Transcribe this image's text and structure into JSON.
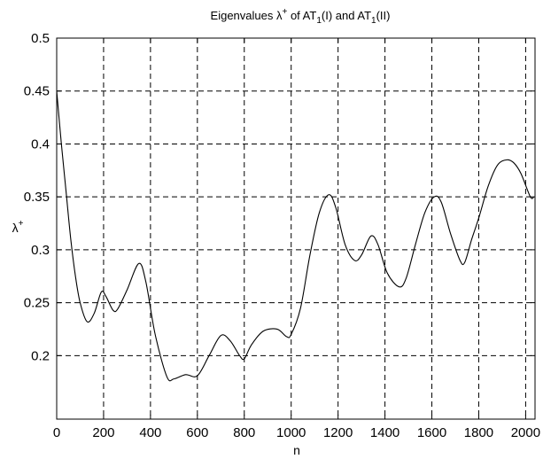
{
  "chart_data": {
    "type": "line",
    "title": {
      "text": "Eigenvalues λ",
      "sup": "+",
      "mid1": " of AT",
      "sub1": "1",
      "mid2": "(I) and AT",
      "sub2": "1",
      "end": "(II)"
    },
    "xlabel": "n",
    "ylabel": {
      "text": "λ",
      "sup": "+"
    },
    "xlim": [
      0,
      2040
    ],
    "ylim": [
      0.14,
      0.5
    ],
    "xticks": [
      0,
      200,
      400,
      600,
      800,
      1000,
      1200,
      1400,
      1600,
      1800,
      2000
    ],
    "xtick_labels": [
      "0",
      "200",
      "400",
      "600",
      "800",
      "1000",
      "1200",
      "1400",
      "1600",
      "1800",
      "2000"
    ],
    "yticks": [
      0.2,
      0.25,
      0.3,
      0.35,
      0.4,
      0.45,
      0.5
    ],
    "ytick_labels": [
      "0.2",
      "0.25",
      "0.3",
      "0.35",
      "0.4",
      "0.45",
      "0.5"
    ],
    "grid": true,
    "grid_style": "dashed",
    "line_color": "#000000",
    "series": [
      {
        "x": [
          0,
          20,
          40,
          60,
          80,
          100,
          130,
          160,
          190,
          210,
          240,
          260,
          300,
          350,
          380,
          420,
          470,
          500,
          550,
          600,
          650,
          700,
          740,
          780,
          800,
          830,
          880,
          940,
          980,
          1000,
          1040,
          1080,
          1120,
          1160,
          1190,
          1230,
          1270,
          1300,
          1340,
          1370,
          1410,
          1460,
          1490,
          1530,
          1570,
          1610,
          1640,
          1680,
          1720,
          1740,
          1770,
          1800,
          1840,
          1880,
          1920,
          1950,
          1980,
          2020,
          2035
        ],
        "y": [
          0.45,
          0.4,
          0.355,
          0.31,
          0.275,
          0.25,
          0.232,
          0.24,
          0.26,
          0.256,
          0.243,
          0.244,
          0.262,
          0.287,
          0.27,
          0.22,
          0.18,
          0.178,
          0.182,
          0.181,
          0.2,
          0.219,
          0.214,
          0.2,
          0.197,
          0.21,
          0.223,
          0.225,
          0.218,
          0.22,
          0.245,
          0.295,
          0.335,
          0.352,
          0.34,
          0.305,
          0.29,
          0.295,
          0.313,
          0.305,
          0.278,
          0.265,
          0.273,
          0.305,
          0.335,
          0.35,
          0.345,
          0.315,
          0.29,
          0.288,
          0.31,
          0.33,
          0.36,
          0.38,
          0.385,
          0.382,
          0.372,
          0.35,
          0.35
        ]
      }
    ]
  }
}
